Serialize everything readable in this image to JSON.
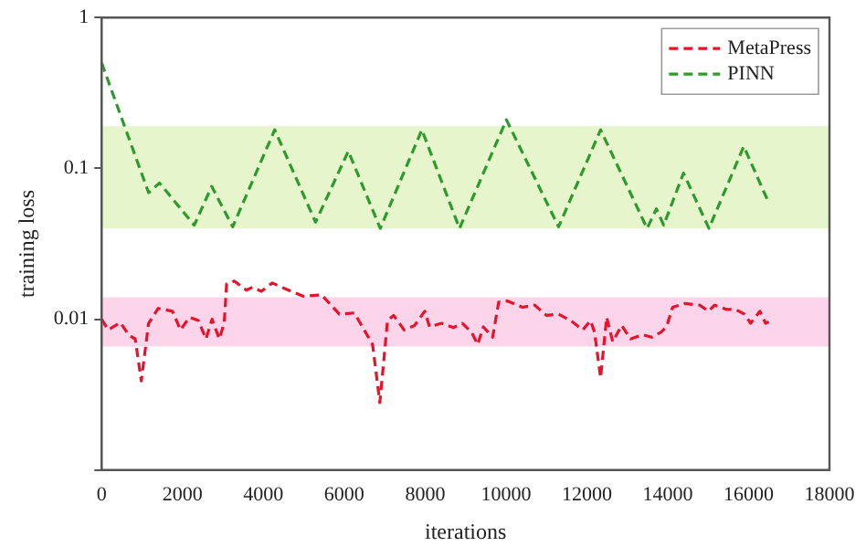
{
  "chart_data": {
    "type": "line",
    "xlabel": "iterations",
    "ylabel": "training loss",
    "xlim": [
      0,
      18000
    ],
    "xticks": [
      0,
      2000,
      4000,
      6000,
      8000,
      10000,
      12000,
      14000,
      16000,
      18000
    ],
    "ylim": [
      0.001,
      1
    ],
    "yticks": [
      1,
      0.1,
      0.01,
      {
        "value": 0.001,
        "label": null
      }
    ],
    "log": "y",
    "grid": false,
    "legend": "top right",
    "marker": "none",
    "line_style": "dashed",
    "bands": [
      {
        "axis": "y",
        "from": 0.04,
        "to": 0.19,
        "color": "#e6f5cc"
      },
      {
        "axis": "y",
        "from": 0.0066,
        "to": 0.014,
        "color": "#fdd5ea"
      }
    ],
    "series": [
      {
        "name": "MetaPress",
        "color": "#e8132b",
        "x": [
          0,
          160,
          460,
          680,
          830,
          980,
          1160,
          1400,
          1750,
          1950,
          2170,
          2390,
          2580,
          2730,
          2910,
          3030,
          3090,
          3280,
          3580,
          3730,
          3950,
          4220,
          4540,
          4990,
          5440,
          5880,
          6250,
          6700,
          6880,
          7070,
          7220,
          7480,
          7740,
          7990,
          8110,
          8410,
          8700,
          8920,
          9150,
          9300,
          9440,
          9670,
          9820,
          10040,
          10410,
          10710,
          11000,
          11300,
          11600,
          11900,
          12090,
          12190,
          12340,
          12490,
          12640,
          12860,
          13080,
          13380,
          13600,
          13830,
          13970,
          14120,
          14420,
          14790,
          15010,
          15160,
          15460,
          15680,
          15900,
          16050,
          16280,
          16420,
          16500
        ],
        "values": [
          0.01,
          0.0085,
          0.0095,
          0.0078,
          0.0074,
          0.0039,
          0.0094,
          0.0118,
          0.0113,
          0.0085,
          0.0103,
          0.0098,
          0.0074,
          0.01,
          0.0074,
          0.0094,
          0.0171,
          0.0179,
          0.0156,
          0.0163,
          0.0153,
          0.0174,
          0.0159,
          0.0142,
          0.0145,
          0.0108,
          0.011,
          0.0068,
          0.0028,
          0.0098,
          0.0106,
          0.0085,
          0.0091,
          0.0113,
          0.0089,
          0.0094,
          0.0088,
          0.0094,
          0.0082,
          0.0068,
          0.0089,
          0.0076,
          0.013,
          0.0132,
          0.012,
          0.0124,
          0.0106,
          0.0108,
          0.0098,
          0.0085,
          0.0098,
          0.0082,
          0.0041,
          0.0103,
          0.0071,
          0.0091,
          0.0074,
          0.0079,
          0.0076,
          0.0082,
          0.0089,
          0.012,
          0.0127,
          0.0124,
          0.0113,
          0.0124,
          0.0116,
          0.0116,
          0.0108,
          0.0094,
          0.0113,
          0.0094,
          0.0096
        ]
      },
      {
        "name": "PINN",
        "color": "#2e9a2e",
        "x": [
          0,
          1160,
          1430,
          2290,
          2720,
          3240,
          4280,
          5290,
          6100,
          6890,
          7920,
          8850,
          10010,
          11300,
          12340,
          13490,
          13720,
          13900,
          14390,
          15020,
          15880,
          16500
        ],
        "values": [
          0.5,
          0.069,
          0.08,
          0.042,
          0.076,
          0.041,
          0.18,
          0.044,
          0.13,
          0.04,
          0.18,
          0.04,
          0.21,
          0.041,
          0.18,
          0.04,
          0.054,
          0.042,
          0.093,
          0.04,
          0.14,
          0.059
        ]
      }
    ]
  }
}
